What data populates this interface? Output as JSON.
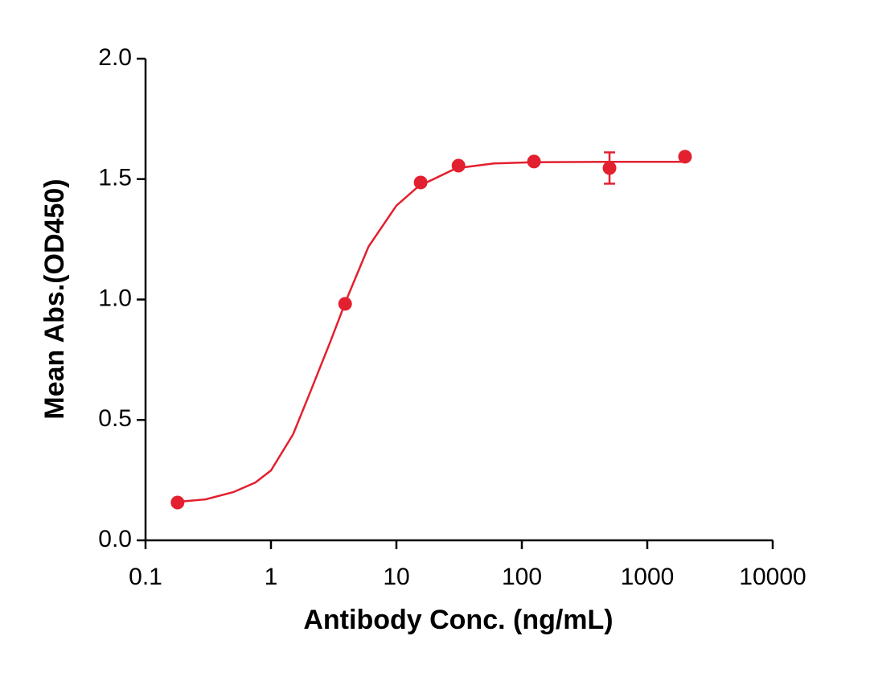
{
  "chart_data": {
    "type": "scatter",
    "xlabel": "Antibody Conc. (ng/mL)",
    "ylabel": "Mean Abs.(OD450)",
    "xscale": "log",
    "xlim": [
      0.1,
      10000
    ],
    "xticks": [
      0.1,
      1,
      10,
      100,
      1000,
      10000
    ],
    "ylim": [
      0,
      2
    ],
    "yticks": [
      {
        "value": 0,
        "label": "0.0"
      },
      0.5,
      {
        "value": 1,
        "label": "1.0"
      },
      1.5,
      {
        "value": 2,
        "label": "2.0"
      }
    ],
    "series": [
      {
        "color": "#e3202f",
        "x": [
          0.18,
          3.9,
          15.6,
          31.25,
          125,
          500,
          2000
        ],
        "values": [
          0.157,
          0.982,
          1.486,
          1.556,
          1.573,
          1.546,
          1.593
        ],
        "errors": [
          null,
          null,
          null,
          null,
          null,
          0.065,
          null
        ]
      }
    ],
    "fit": {
      "color": "#e3202f",
      "x": [
        0.18,
        0.3,
        0.5,
        0.75,
        1,
        1.5,
        2,
        3,
        4,
        6,
        10,
        15,
        30,
        60,
        125,
        500,
        2000
      ],
      "values": [
        0.16,
        0.17,
        0.2,
        0.24,
        0.29,
        0.44,
        0.6,
        0.83,
        1.0,
        1.22,
        1.39,
        1.47,
        1.545,
        1.565,
        1.57,
        1.572,
        1.572
      ]
    }
  }
}
